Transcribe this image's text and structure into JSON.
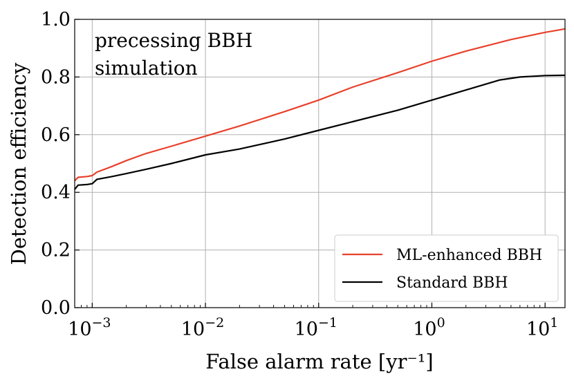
{
  "chart_data": {
    "type": "line",
    "title": "",
    "annotation": [
      "precessing BBH",
      "simulation"
    ],
    "xlabel": "False alarm rate [yr⁻¹]",
    "ylabel": "Detection efficiency",
    "xscale": "log",
    "xlim": [
      0.0007,
      15
    ],
    "ylim": [
      0.0,
      1.0
    ],
    "grid": true,
    "legend_position": "bottom-right",
    "x_ticks": [
      {
        "value": 0.001,
        "base": "10",
        "exp": "−3"
      },
      {
        "value": 0.01,
        "base": "10",
        "exp": "−2"
      },
      {
        "value": 0.1,
        "base": "10",
        "exp": "−1"
      },
      {
        "value": 1,
        "base": "10",
        "exp": "0"
      },
      {
        "value": 10,
        "base": "10",
        "exp": "1"
      }
    ],
    "y_ticks": [
      {
        "value": 0.0,
        "label": "0.0"
      },
      {
        "value": 0.2,
        "label": "0.2"
      },
      {
        "value": 0.4,
        "label": "0.4"
      },
      {
        "value": 0.6,
        "label": "0.6"
      },
      {
        "value": 0.8,
        "label": "0.8"
      },
      {
        "value": 1.0,
        "label": "1.0"
      }
    ],
    "series": [
      {
        "name": "ML-enhanced BBH",
        "color": "#e8402a",
        "x": [
          0.0007,
          0.00075,
          0.0009,
          0.001,
          0.0011,
          0.0015,
          0.002,
          0.003,
          0.005,
          0.01,
          0.02,
          0.05,
          0.1,
          0.2,
          0.5,
          1,
          2,
          5,
          10,
          15
        ],
        "y": [
          0.44,
          0.452,
          0.455,
          0.458,
          0.47,
          0.49,
          0.51,
          0.535,
          0.56,
          0.595,
          0.63,
          0.68,
          0.72,
          0.765,
          0.815,
          0.855,
          0.89,
          0.93,
          0.955,
          0.967
        ]
      },
      {
        "name": "Standard BBH",
        "color": "#000000",
        "x": [
          0.0007,
          0.00075,
          0.0009,
          0.001,
          0.0011,
          0.0015,
          0.002,
          0.003,
          0.005,
          0.01,
          0.02,
          0.05,
          0.1,
          0.2,
          0.5,
          1,
          2,
          4,
          6,
          10,
          15
        ],
        "y": [
          0.41,
          0.425,
          0.427,
          0.43,
          0.445,
          0.455,
          0.465,
          0.48,
          0.5,
          0.53,
          0.55,
          0.585,
          0.615,
          0.645,
          0.685,
          0.72,
          0.755,
          0.79,
          0.8,
          0.805,
          0.806
        ]
      }
    ]
  }
}
